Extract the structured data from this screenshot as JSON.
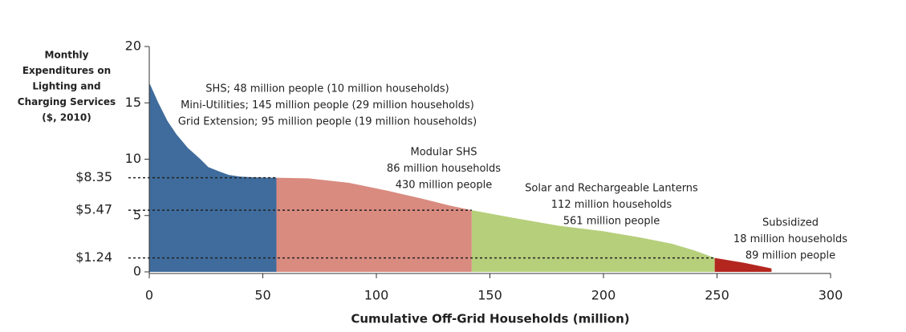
{
  "chart_data": {
    "type": "area",
    "y_title_lines": [
      "Monthly",
      "Expenditures on",
      "Lighting and",
      "Charging Services",
      "($, 2010)"
    ],
    "x_title": "Cumulative Off-Grid Households (million)",
    "xlim": [
      0,
      300
    ],
    "xticks": [
      0,
      50,
      100,
      150,
      200,
      250,
      300
    ],
    "ylim": [
      0,
      20
    ],
    "yticks": [
      0,
      5,
      10,
      15,
      20
    ],
    "series": [
      {
        "color": "#3f6c9c",
        "x": [
          0,
          4,
          8,
          12,
          17,
          22,
          26,
          31,
          35,
          40,
          45,
          50,
          56
        ],
        "values": [
          16.8,
          15,
          13.4,
          12.2,
          11,
          10.1,
          9.3,
          8.9,
          8.6,
          8.45,
          8.4,
          8.37,
          8.35
        ],
        "labels": [
          "SHS; 48 million people  (10 million households)",
          "Mini-Utilities; 145 million people (29 million households)",
          "Grid Extension; 95 million people (19 million households)"
        ]
      },
      {
        "color": "#d98b80",
        "x": [
          56,
          70,
          88,
          105,
          120,
          132,
          142
        ],
        "values": [
          8.35,
          8.3,
          7.9,
          7.2,
          6.5,
          5.9,
          5.47
        ],
        "labels": [
          "Modular SHS",
          "86 million households",
          "430 million people"
        ]
      },
      {
        "color": "#b6cf7b",
        "x": [
          142,
          160,
          180,
          200,
          215,
          230,
          240,
          249
        ],
        "values": [
          5.47,
          4.8,
          4.1,
          3.6,
          3.1,
          2.5,
          1.9,
          1.24
        ],
        "labels": [
          "Solar and Rechargeable Lanterns",
          "112 million households",
          "561 million people"
        ]
      },
      {
        "color": "#b3261f",
        "x": [
          249,
          262,
          274
        ],
        "values": [
          1.24,
          0.8,
          0.3
        ],
        "labels": [
          "Subsidized",
          "18 million households",
          "89 million people"
        ]
      }
    ],
    "reference_lines": [
      {
        "value": 8.35,
        "label": "$8.35"
      },
      {
        "value": 5.47,
        "label": "$5.47"
      },
      {
        "value": 1.24,
        "label": "$1.24"
      }
    ]
  }
}
